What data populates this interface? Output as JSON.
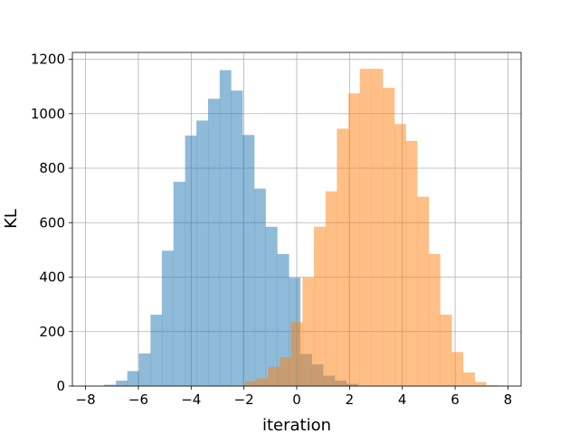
{
  "chart_data": {
    "type": "bar",
    "subtype": "histogram",
    "xlabel": "iteration",
    "ylabel": "KL",
    "xlim": [
      -8.5,
      8.5
    ],
    "ylim": [
      0,
      1225
    ],
    "xticks": [
      -8,
      -6,
      -4,
      -2,
      0,
      2,
      4,
      6,
      8
    ],
    "yticks": [
      0,
      200,
      400,
      600,
      800,
      1000,
      1200
    ],
    "grid": true,
    "legend": "none",
    "series": [
      {
        "color": "#1f77b4",
        "opacity": 0.5,
        "bins": [
          [
            -7.3,
            -6.85,
            5
          ],
          [
            -6.85,
            -6.42,
            20
          ],
          [
            -6.42,
            -5.98,
            55
          ],
          [
            -5.98,
            -5.54,
            120
          ],
          [
            -5.54,
            -5.11,
            262
          ],
          [
            -5.11,
            -4.67,
            497
          ],
          [
            -4.67,
            -4.23,
            750
          ],
          [
            -4.23,
            -3.8,
            920
          ],
          [
            -3.8,
            -3.36,
            975
          ],
          [
            -3.36,
            -2.92,
            1055
          ],
          [
            -2.92,
            -2.49,
            1160
          ],
          [
            -2.49,
            -2.05,
            1085
          ],
          [
            -2.05,
            -1.61,
            922
          ],
          [
            -1.61,
            -1.18,
            725
          ],
          [
            -1.18,
            -0.74,
            585
          ],
          [
            -0.74,
            -0.3,
            485
          ],
          [
            -0.3,
            0.13,
            398
          ],
          [
            0.13,
            0.57,
            118
          ],
          [
            0.57,
            1.0,
            80
          ],
          [
            1.0,
            1.44,
            38
          ],
          [
            1.44,
            1.88,
            20
          ],
          [
            1.88,
            2.31,
            8
          ]
        ]
      },
      {
        "color": "#ff7f0e",
        "opacity": 0.5,
        "bins": [
          [
            -1.95,
            -1.52,
            18
          ],
          [
            -1.52,
            -1.09,
            28
          ],
          [
            -1.09,
            -0.65,
            70
          ],
          [
            -0.65,
            -0.22,
            105
          ],
          [
            -0.22,
            0.22,
            235
          ],
          [
            0.22,
            0.65,
            398
          ],
          [
            0.65,
            1.09,
            585
          ],
          [
            1.09,
            1.52,
            715
          ],
          [
            1.52,
            1.96,
            945
          ],
          [
            1.96,
            2.39,
            1075
          ],
          [
            2.39,
            2.83,
            1165
          ],
          [
            2.83,
            3.26,
            1165
          ],
          [
            3.26,
            3.7,
            1095
          ],
          [
            3.7,
            4.13,
            962
          ],
          [
            4.13,
            4.56,
            900
          ],
          [
            4.56,
            5.0,
            695
          ],
          [
            5.0,
            5.43,
            485
          ],
          [
            5.43,
            5.87,
            262
          ],
          [
            5.87,
            6.3,
            125
          ],
          [
            6.3,
            6.74,
            50
          ],
          [
            6.74,
            7.17,
            15
          ],
          [
            7.17,
            7.6,
            3
          ]
        ]
      }
    ]
  }
}
